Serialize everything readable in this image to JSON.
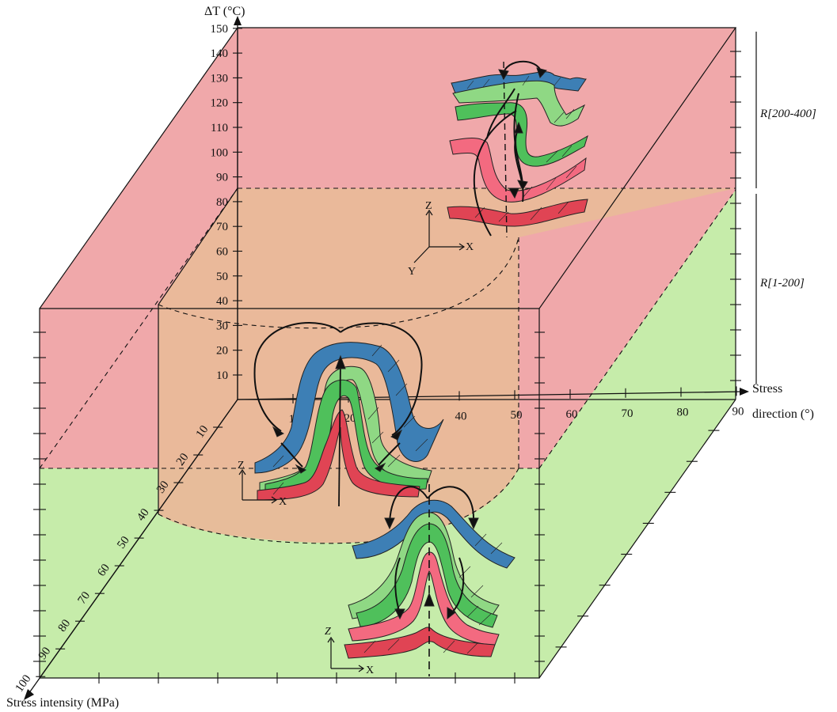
{
  "axes": {
    "z_title": "ΔT (°C)",
    "x_title_line1": "Stress",
    "x_title_line2": "direction (°)",
    "y_title": "Stress intensity (MPa)",
    "z_ticks": [
      "10",
      "20",
      "30",
      "40",
      "50",
      "60",
      "70",
      "80",
      "90",
      "100",
      "110",
      "120",
      "130",
      "140",
      "150"
    ],
    "x_ticks": [
      "10",
      "20",
      "30",
      "40",
      "50",
      "60",
      "70",
      "80",
      "90"
    ],
    "y_ticks": [
      "10",
      "20",
      "30",
      "40",
      "50",
      "60",
      "70",
      "80",
      "90",
      "100"
    ]
  },
  "regions": {
    "upper": {
      "label": "R[200-400]",
      "color": "#f0a8aa"
    },
    "lower": {
      "label": "R[1-200]",
      "color": "#c6ecaa"
    },
    "middle_color": "#e9b999"
  },
  "local_axes": {
    "top": {
      "z": "Z",
      "x": "X",
      "y": "Y"
    },
    "middle": {
      "z": "Z",
      "x": "X"
    },
    "bottom": {
      "z": "Z",
      "x": "X"
    }
  },
  "series_colors": {
    "blue": "#3d7fb5",
    "light_green": "#8fd884",
    "green": "#4fc05b",
    "pink": "#f36a80",
    "red": "#e04454"
  }
}
